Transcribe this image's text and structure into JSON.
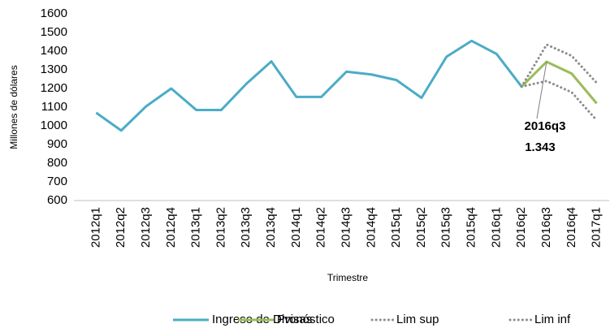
{
  "chart_data": {
    "type": "line",
    "x_label": "Trimestre",
    "y_label": "Millones de dólares",
    "categories": [
      "2012q1",
      "2012q2",
      "2012q3",
      "2012q4",
      "2013q1",
      "2013q2",
      "2013q3",
      "2013q4",
      "2014q1",
      "2014q2",
      "2014q3",
      "2014q4",
      "2015q1",
      "2015q2",
      "2015q3",
      "2015q4",
      "2016q1",
      "2016q2",
      "2016q3",
      "2016q4",
      "2017q1"
    ],
    "series": [
      {
        "name": "Ingreso de Divisas",
        "color": "#4bacc6",
        "style": "solid",
        "values": [
          1070,
          975,
          1105,
          1200,
          1085,
          1085,
          1225,
          1345,
          1155,
          1155,
          1290,
          1275,
          1245,
          1150,
          1370,
          1455,
          1385,
          1210,
          null,
          null,
          null
        ]
      },
      {
        "name": "Pronóstico",
        "color": "#9bbb59",
        "style": "solid",
        "values": [
          null,
          null,
          null,
          null,
          null,
          null,
          null,
          null,
          null,
          null,
          null,
          null,
          null,
          null,
          null,
          null,
          null,
          1210,
          1343,
          1280,
          1120
        ]
      },
      {
        "name": "Lim sup",
        "color": "#8c8c8c",
        "style": "dotted",
        "values": [
          null,
          null,
          null,
          null,
          null,
          null,
          null,
          null,
          null,
          null,
          null,
          null,
          null,
          null,
          null,
          null,
          null,
          1210,
          1435,
          1375,
          1230
        ]
      },
      {
        "name": "Lim inf",
        "color": "#8c8c8c",
        "style": "dotted",
        "values": [
          null,
          null,
          null,
          null,
          null,
          null,
          null,
          null,
          null,
          null,
          null,
          null,
          null,
          null,
          null,
          null,
          null,
          1210,
          1240,
          1180,
          1030
        ]
      }
    ],
    "annotation": {
      "x": "2016q3",
      "value": 1343,
      "value_label": "1.343"
    },
    "ylim": [
      600,
      1600
    ],
    "yticks": [
      600,
      700,
      800,
      900,
      1000,
      1100,
      1200,
      1300,
      1400,
      1500,
      1600
    ],
    "legend": "bottom"
  }
}
